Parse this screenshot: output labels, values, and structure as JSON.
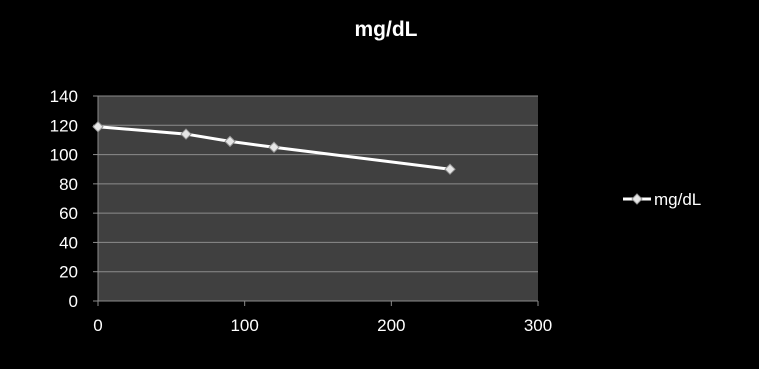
{
  "colors": {
    "background": "#000000",
    "plot_area": "#404040",
    "gridline": "#8c8c8c",
    "text": "#ffffff",
    "series_line": "#ffffff",
    "marker_fill": "#e6e6e6"
  },
  "chart_data": {
    "type": "scatter",
    "title": "mg/dL",
    "xlabel": "",
    "ylabel": "",
    "xlim": [
      0,
      300
    ],
    "ylim": [
      0,
      140
    ],
    "x_ticks": [
      0,
      100,
      200,
      300
    ],
    "y_ticks": [
      0,
      20,
      40,
      60,
      80,
      100,
      120,
      140
    ],
    "grid": "horizontal",
    "legend_position": "right",
    "marker": "diamond",
    "series": [
      {
        "name": "mg/dL",
        "x": [
          0,
          60,
          90,
          120,
          240
        ],
        "y": [
          119,
          114,
          109,
          105,
          90
        ]
      }
    ]
  }
}
